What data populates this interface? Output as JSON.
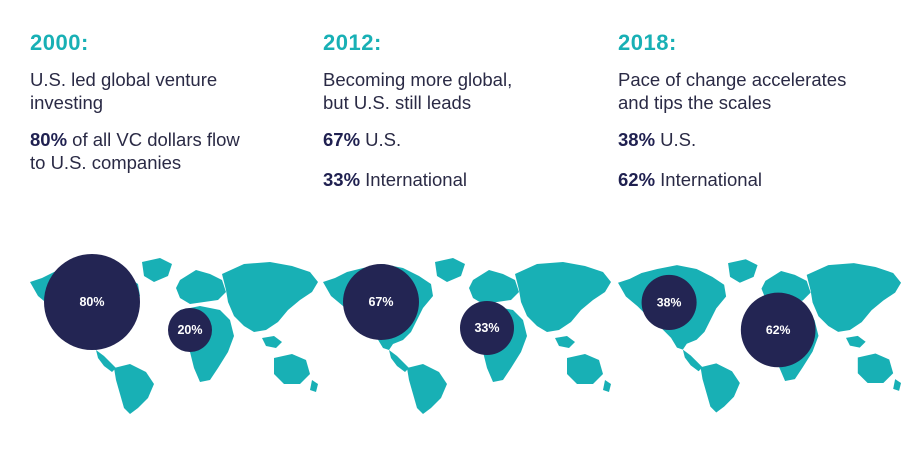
{
  "colors": {
    "teal": "#18b0b5",
    "navy": "#232553",
    "text": "#2a2a45"
  },
  "panels": [
    {
      "year": "2000:",
      "headline_line1": "U.S. led global venture",
      "headline_line2": "investing",
      "stat1_value": "80%",
      "stat1_text": " of all VC dollars flow",
      "stat1_text_line2": "to U.S. companies",
      "stat2_value": "",
      "stat2_text": "",
      "bubble_us_label": "80%",
      "bubble_intl_label": "20%",
      "us_share": 80,
      "intl_share": 20
    },
    {
      "year": "2012:",
      "headline_line1": "Becoming more global,",
      "headline_line2": "but U.S. still leads",
      "stat1_value": "67%",
      "stat1_text": " U.S.",
      "stat1_text_line2": "",
      "stat2_value": "33%",
      "stat2_text": " International",
      "bubble_us_label": "67%",
      "bubble_intl_label": "33%",
      "us_share": 67,
      "intl_share": 33
    },
    {
      "year": "2018:",
      "headline_line1": "Pace of change accelerates",
      "headline_line2": "and tips the scales",
      "stat1_value": "38%",
      "stat1_text": " U.S.",
      "stat1_text_line2": "",
      "stat2_value": "62%",
      "stat2_text": " International",
      "bubble_us_label": "38%",
      "bubble_intl_label": "62%",
      "us_share": 38,
      "intl_share": 62
    }
  ]
}
